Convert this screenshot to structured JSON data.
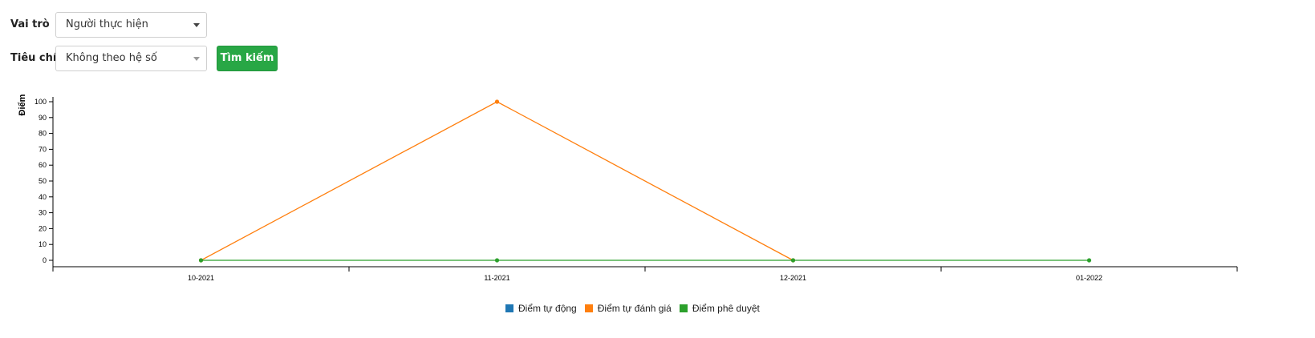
{
  "filters": {
    "role_label": "Vai trò",
    "role_value": "Người thực hiện",
    "criteria_label": "Tiêu chí",
    "criteria_value": "Không theo hệ số",
    "search_button": "Tìm kiếm"
  },
  "chart_data": {
    "type": "line",
    "categories": [
      "10-2021",
      "11-2021",
      "12-2021",
      "01-2022"
    ],
    "ylabel": "Điểm",
    "ylim": [
      0,
      100
    ],
    "yticks": [
      0,
      10,
      20,
      30,
      40,
      50,
      60,
      70,
      80,
      90,
      100
    ],
    "legend_position": "bottom",
    "series": [
      {
        "name": "Điểm tự động",
        "color": "#1f77b4",
        "values": [
          null,
          null,
          null,
          null
        ]
      },
      {
        "name": "Điểm tự đánh giá",
        "color": "#ff7f0e",
        "values": [
          0,
          100,
          0,
          null
        ]
      },
      {
        "name": "Điểm phê duyệt",
        "color": "#2ca02c",
        "values": [
          0,
          0,
          0,
          0
        ]
      }
    ]
  }
}
